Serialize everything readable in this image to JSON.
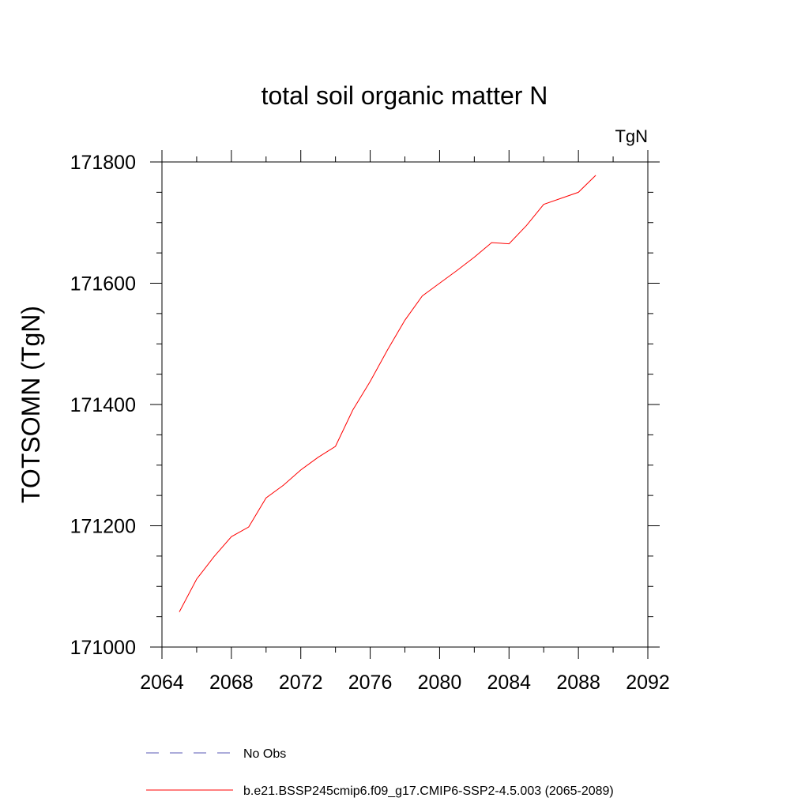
{
  "chart_data": {
    "type": "line",
    "title": "total soil organic matter N",
    "units": "TgN",
    "ylabel": "TOTSOMN  (TgN)",
    "xlabel": "",
    "xlim": [
      2064,
      2092
    ],
    "ylim": [
      171000,
      171800
    ],
    "xticks": [
      2064,
      2068,
      2072,
      2076,
      2080,
      2084,
      2088,
      2092
    ],
    "yticks": [
      171000,
      171200,
      171400,
      171600,
      171800
    ],
    "x_minor_step": 2,
    "y_minor_step": 50,
    "grid": false,
    "legend_position": "bottom",
    "series": [
      {
        "name": "No Obs",
        "color": "#5a5ab4",
        "dashed": true,
        "x": [],
        "y": []
      },
      {
        "name": "b.e21.BSSP245cmip6.f09_g17.CMIP6-SSP2-4.5.003 (2065-2089)",
        "color": "#ff0000",
        "dashed": false,
        "x": [
          2065,
          2066,
          2067,
          2068,
          2069,
          2070,
          2071,
          2072,
          2073,
          2074,
          2075,
          2076,
          2077,
          2078,
          2079,
          2080,
          2081,
          2082,
          2083,
          2084,
          2085,
          2086,
          2087,
          2088,
          2089
        ],
        "y": [
          171058,
          171112,
          171149,
          171182,
          171198,
          171246,
          171267,
          171292,
          171313,
          171331,
          171391,
          171438,
          171490,
          171539,
          171579,
          171600,
          171621,
          171643,
          171667,
          171665,
          171695,
          171730,
          171740,
          171750,
          171778
        ]
      }
    ]
  }
}
